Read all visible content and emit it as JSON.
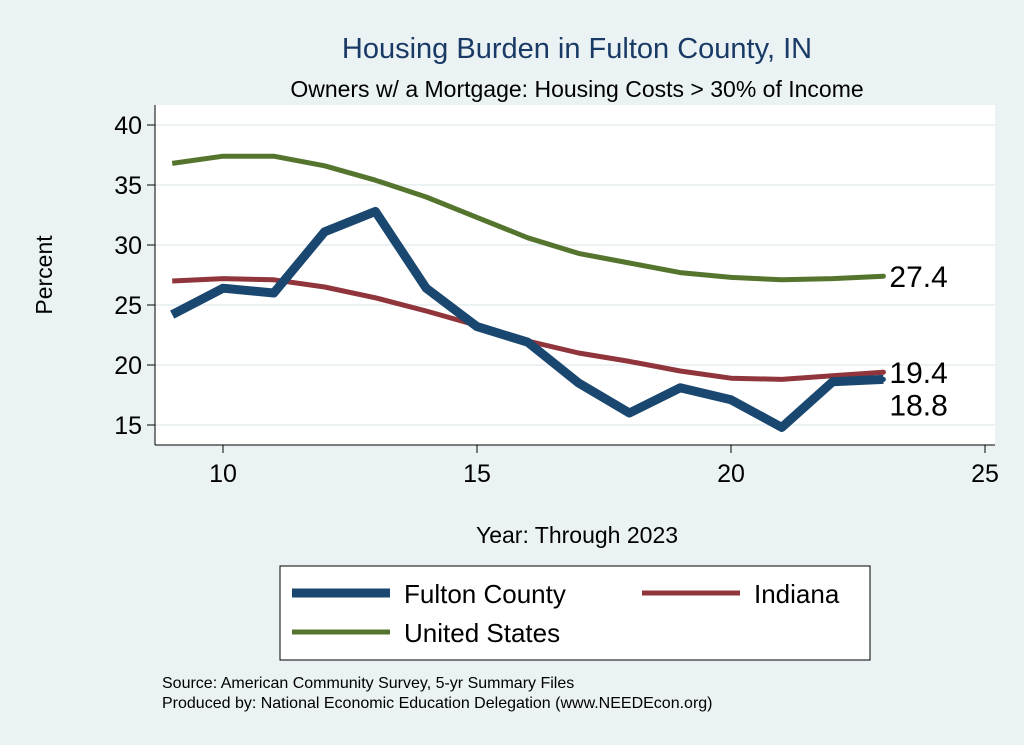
{
  "chart_data": {
    "type": "line",
    "title": "Housing Burden in Fulton County, IN",
    "subtitle": "Owners w/ a Mortgage: Housing Costs > 30% of Income",
    "xlabel": "Year: Through 2023",
    "ylabel": "Percent",
    "xlim": [
      8.7,
      25.4
    ],
    "ylim": [
      13.3,
      41.7
    ],
    "xticks": [
      10,
      15,
      20,
      25
    ],
    "yticks": [
      15,
      20,
      25,
      30,
      35,
      40
    ],
    "grid": true,
    "x": [
      9,
      10,
      11,
      12,
      13,
      14,
      15,
      16,
      17,
      18,
      19,
      20,
      21,
      22,
      23
    ],
    "series": [
      {
        "name": "Fulton County",
        "color": "#1a476f",
        "values": [
          24.2,
          26.4,
          26.0,
          31.1,
          32.8,
          26.4,
          23.2,
          21.9,
          18.5,
          16.0,
          18.1,
          17.1,
          14.8,
          18.6,
          18.8
        ],
        "end_label": "18.8"
      },
      {
        "name": "Indiana",
        "color": "#90353b",
        "values": [
          27.0,
          27.2,
          27.1,
          26.5,
          25.6,
          24.5,
          23.3,
          22.0,
          21.0,
          20.3,
          19.5,
          18.9,
          18.8,
          19.1,
          19.4
        ],
        "end_label": "19.4"
      },
      {
        "name": "United States",
        "color": "#55752f",
        "values": [
          36.8,
          37.4,
          37.4,
          36.6,
          35.4,
          34.0,
          32.3,
          30.6,
          29.3,
          28.5,
          27.7,
          27.3,
          27.1,
          27.2,
          27.4
        ],
        "end_label": "27.4"
      }
    ],
    "legend_placement": "bottom",
    "notes": [
      "Source: American Community Survey, 5-yr Summary Files",
      "Produced by: National Economic Education Delegation (www.NEEDEcon.org)"
    ]
  }
}
